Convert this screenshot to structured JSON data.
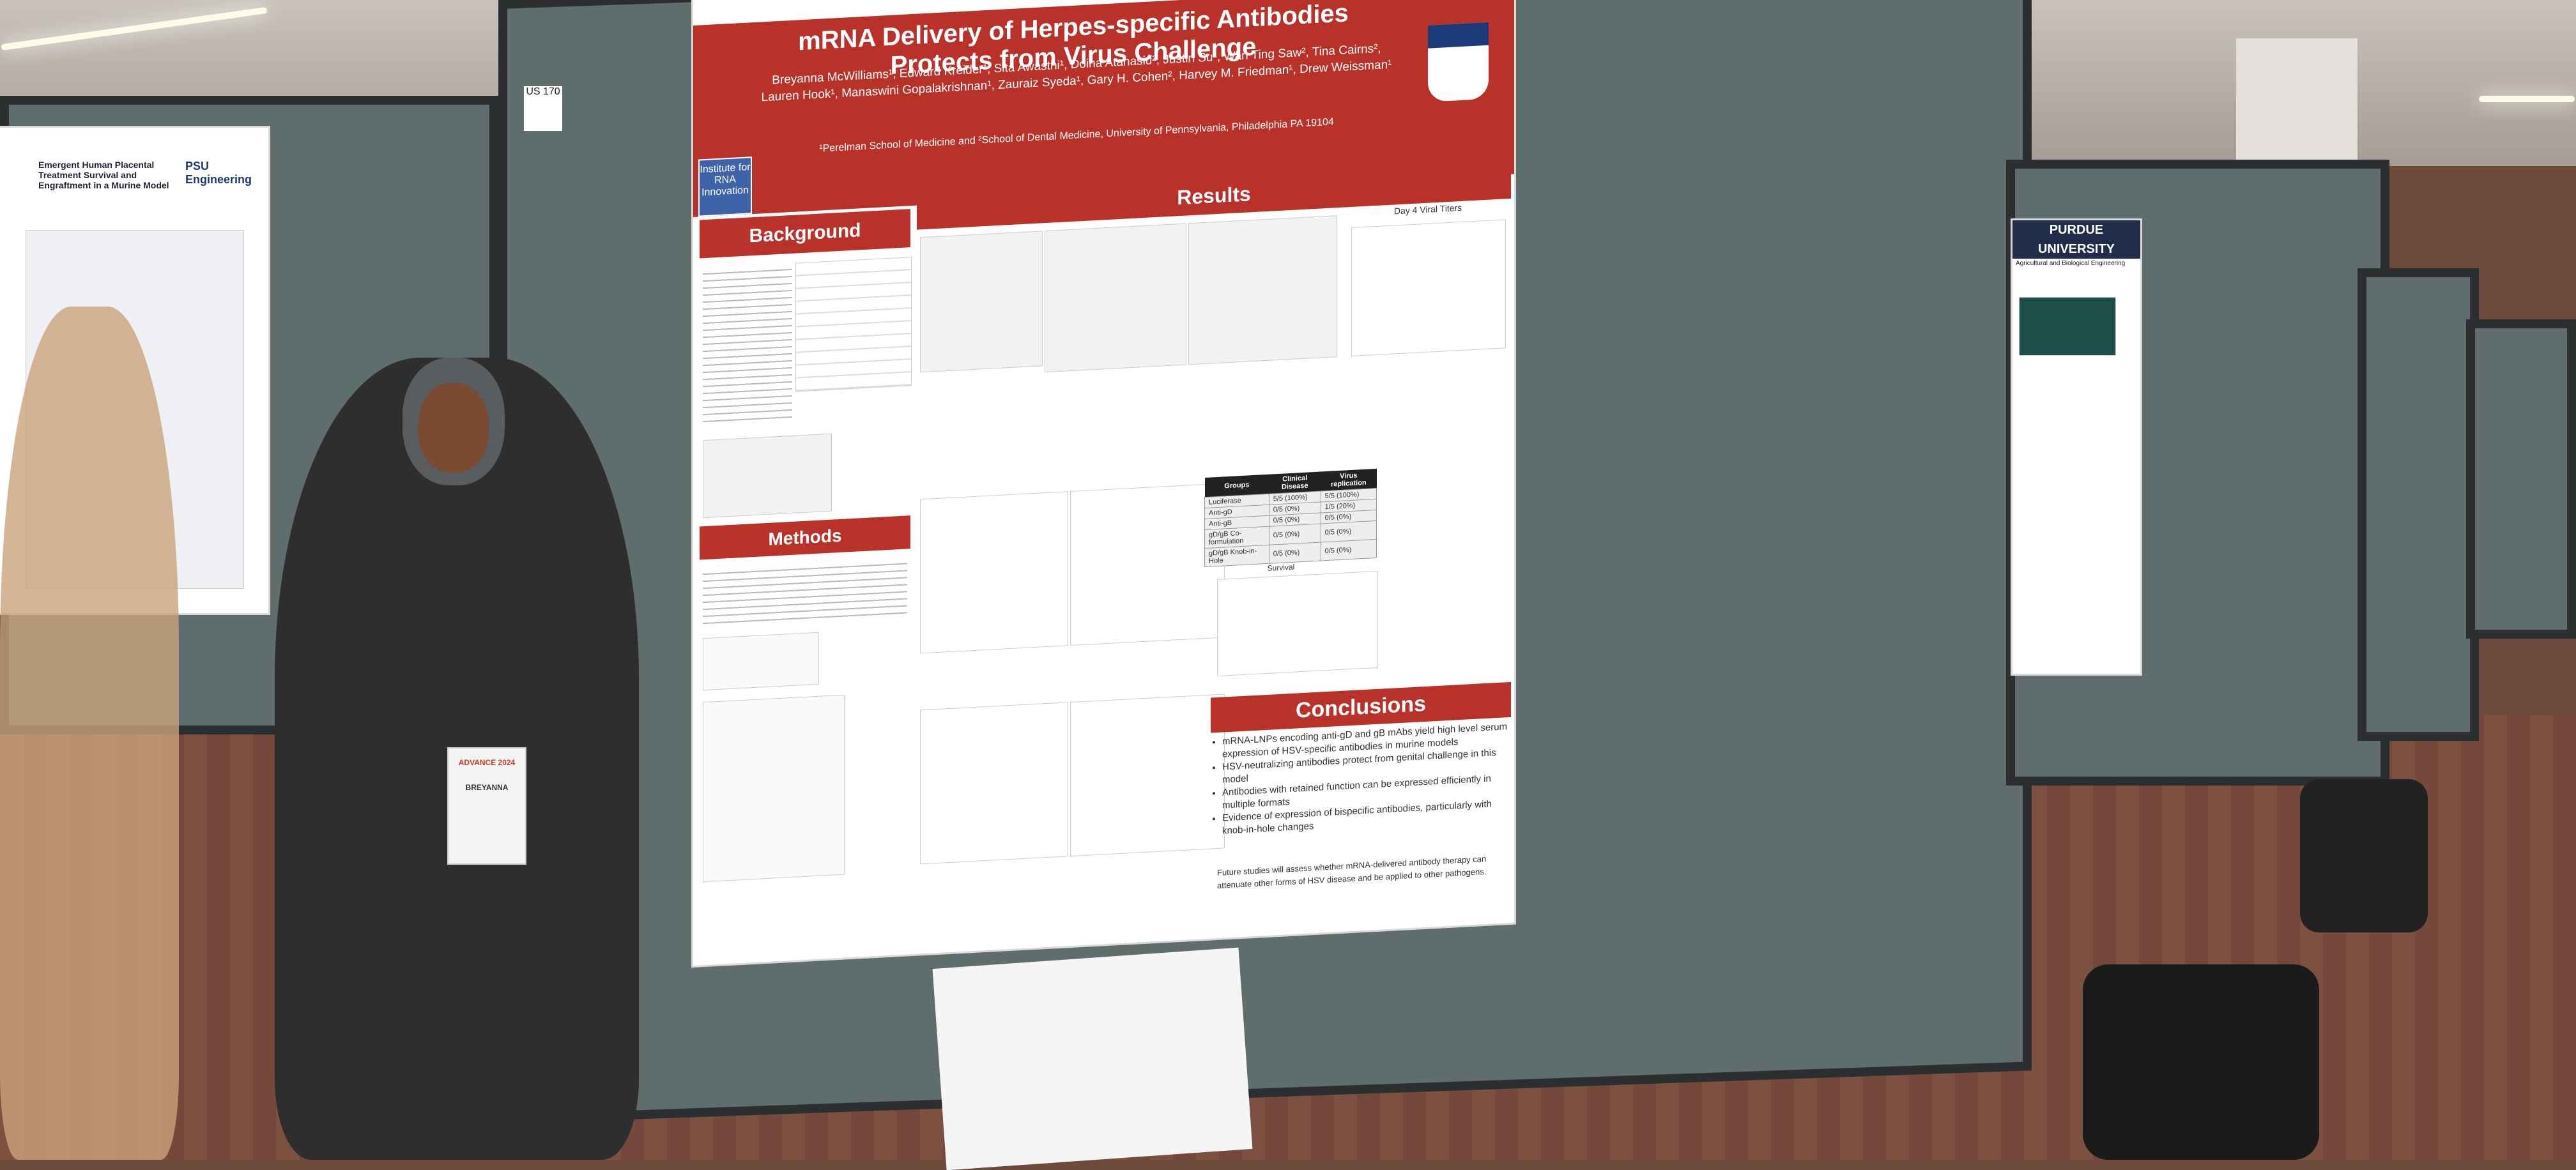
{
  "scene": {
    "description_colors": {
      "board": "#5f6d6d",
      "poster_red": "#b8322a",
      "carpet": "#7c5142"
    }
  },
  "poster_tag": "US 170",
  "main_poster": {
    "title": "mRNA Delivery of Herpes-specific Antibodies Protects from Virus Challenge",
    "authors": "Breyanna McWilliams¹, Edward Kreider¹, Sita Awasthi¹, Doina Atanasiu², Justin Su¹, Wan Ting Saw², Tina Cairns², Lauren Hook¹, Manaswini Gopalakrishnan¹, Zauraiz Syeda¹, Gary H. Cohen², Harvey M. Friedman¹, Drew Weissman¹",
    "affiliation": "¹Perelman School of Medicine and ²School of Dental Medicine, University of Pennsylvania, Philadelphia PA 19104",
    "logo_text": "Institute for RNA Innovation",
    "sections": {
      "background": "Background",
      "methods": "Methods",
      "results": "Results",
      "conclusions": "Conclusions"
    },
    "results_chart_title": "Day 4 Viral Titers",
    "survival_label": "Survival",
    "table": {
      "headers": [
        "Groups",
        "Clinical Disease",
        "Virus replication"
      ],
      "rows": [
        [
          "Luciferase",
          "5/5 (100%)",
          "5/5 (100%)"
        ],
        [
          "Anti-gD",
          "0/5 (0%)",
          "1/5 (20%)"
        ],
        [
          "Anti-gB",
          "0/5 (0%)",
          "0/5 (0%)"
        ],
        [
          "gD/gB Co-formulation",
          "0/5 (0%)",
          "0/5 (0%)"
        ],
        [
          "gD/gB Knob-in-Hole",
          "0/5 (0%)",
          "0/5 (0%)"
        ]
      ]
    },
    "conclusions": [
      "mRNA-LNPs encoding anti-gD and gB mAbs yield high level serum expression of HSV-specific antibodies in murine models",
      "HSV-neutralizing antibodies protect from genital challenge in this model",
      "Antibodies with retained function can be expressed efficiently in multiple formats",
      "Evidence of expression of bispecific antibodies, particularly with knob-in-hole changes"
    ],
    "future": "Future studies will assess whether mRNA-delivered antibody therapy can attenuate other forms of HSV disease and be applied to other pathogens."
  },
  "left_poster": {
    "title": "Emergent Human Placental Treatment Survival and Engraftment in a Murine Model",
    "logo": "PSU Engineering"
  },
  "right_poster": {
    "brand": "PURDUE UNIVERSITY",
    "subtitle": "Agricultural and Biological Engineering"
  },
  "badge": {
    "event": "ADVANCE 2024",
    "name": "BREYANNA"
  }
}
